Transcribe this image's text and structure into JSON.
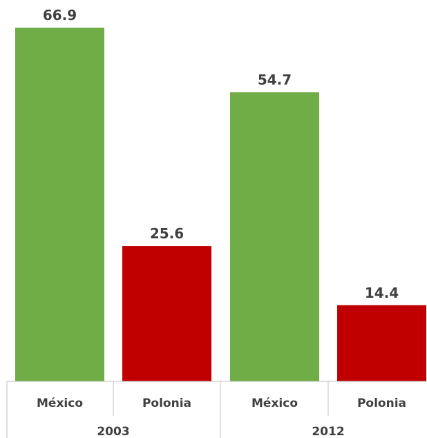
{
  "chart_data": {
    "type": "bar",
    "title": "",
    "xlabel": "",
    "ylabel": "",
    "ylim": [
      0,
      66.9
    ],
    "grid": false,
    "legend": "none",
    "groups": [
      "2003",
      "2012"
    ],
    "categories": [
      "México",
      "Polonia"
    ],
    "bars": [
      {
        "group": "2003",
        "category": "México",
        "value": 66.9,
        "label": "66.9",
        "color": "#70ad47"
      },
      {
        "group": "2003",
        "category": "Polonia",
        "value": 25.6,
        "label": "25.6",
        "color": "#c00000"
      },
      {
        "group": "2012",
        "category": "México",
        "value": 54.7,
        "label": "54.7",
        "color": "#70ad47"
      },
      {
        "group": "2012",
        "category": "Polonia",
        "value": 14.4,
        "label": "14.4",
        "color": "#c00000"
      }
    ]
  }
}
